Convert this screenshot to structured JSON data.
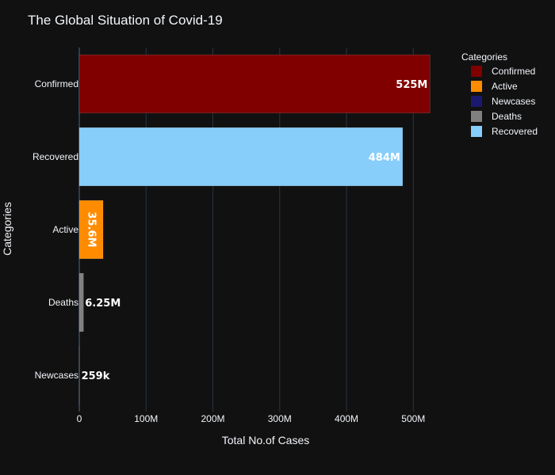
{
  "chart_data": {
    "type": "bar",
    "orientation": "horizontal",
    "title": "The Global Situation of Covid-19",
    "xlabel": "Total No.of Cases",
    "ylabel": "Categories",
    "xlim": [
      0,
      540000000
    ],
    "x_ticks": [
      0,
      100000000,
      200000000,
      300000000,
      400000000,
      500000000
    ],
    "x_tick_labels": [
      "0",
      "100M",
      "200M",
      "300M",
      "400M",
      "500M"
    ],
    "grid": true,
    "legend_title": "Categories",
    "legend_position": "top-right",
    "categories": [
      "Confirmed",
      "Recovered",
      "Active",
      "Deaths",
      "Newcases"
    ],
    "values": [
      525000000,
      484000000,
      35600000,
      6250000,
      259000
    ],
    "value_labels": [
      "525M",
      "484M",
      "35.6M",
      "6.25M",
      "259k"
    ],
    "colors": {
      "Confirmed": "#800000",
      "Active": "#ff8c00",
      "Newcases": "#191970",
      "Deaths": "#808080",
      "Recovered": "#87cefa"
    },
    "legend_order": [
      "Confirmed",
      "Active",
      "Newcases",
      "Deaths",
      "Recovered"
    ]
  }
}
